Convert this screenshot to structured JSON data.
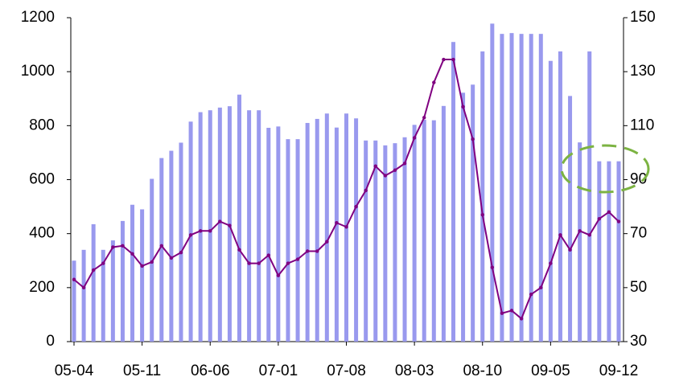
{
  "chart_data": {
    "type": "bar_line",
    "categories": [
      "05-04",
      null,
      null,
      null,
      null,
      null,
      null,
      "05-11",
      null,
      null,
      null,
      null,
      null,
      null,
      "06-06",
      null,
      null,
      null,
      null,
      null,
      null,
      "07-01",
      null,
      null,
      null,
      null,
      null,
      null,
      "07-08",
      null,
      null,
      null,
      null,
      null,
      null,
      "08-03",
      null,
      null,
      null,
      null,
      null,
      null,
      "08-10",
      null,
      null,
      null,
      null,
      null,
      null,
      "09-05",
      null,
      null,
      null,
      null,
      null,
      null,
      "09-12"
    ],
    "series": [
      {
        "type": "bar",
        "color": "#9999ee",
        "values": [
          300,
          340,
          435,
          340,
          375,
          447,
          507,
          490,
          603,
          680,
          707,
          737,
          815,
          850,
          857,
          867,
          872,
          915,
          857,
          857,
          792,
          797,
          750,
          750,
          810,
          825,
          845,
          793,
          845,
          827,
          745,
          745,
          727,
          735,
          757,
          803,
          822,
          820,
          873,
          1110,
          922,
          952,
          1075,
          1178,
          1140,
          1143,
          1140,
          1140,
          1140,
          1040,
          1075,
          910,
          738,
          1075,
          668,
          668,
          668
        ]
      },
      {
        "type": "line",
        "axis": "y2",
        "color": "#800080",
        "values": [
          53,
          50,
          56.5,
          59,
          65,
          65.5,
          62.5,
          58,
          59.5,
          65.5,
          61,
          63,
          69.5,
          71,
          71,
          74.5,
          73,
          64,
          59,
          59,
          62,
          54.5,
          59,
          60.5,
          63.5,
          63.5,
          67,
          74,
          72.5,
          80,
          86,
          95,
          91.5,
          93.5,
          96,
          105.5,
          113,
          126,
          134.5,
          134.5,
          117,
          105,
          77,
          57.5,
          40.5,
          41.5,
          38.5,
          47.5,
          50,
          59,
          69.5,
          64,
          71,
          69.5,
          75.5,
          78,
          74.5
        ]
      }
    ],
    "ylim": [
      0,
      1200
    ],
    "yticks": [
      0,
      200,
      400,
      600,
      800,
      1000,
      1200
    ],
    "y2lim": [
      30,
      150
    ],
    "y2ticks": [
      30,
      50,
      70,
      90,
      110,
      130,
      150
    ]
  }
}
